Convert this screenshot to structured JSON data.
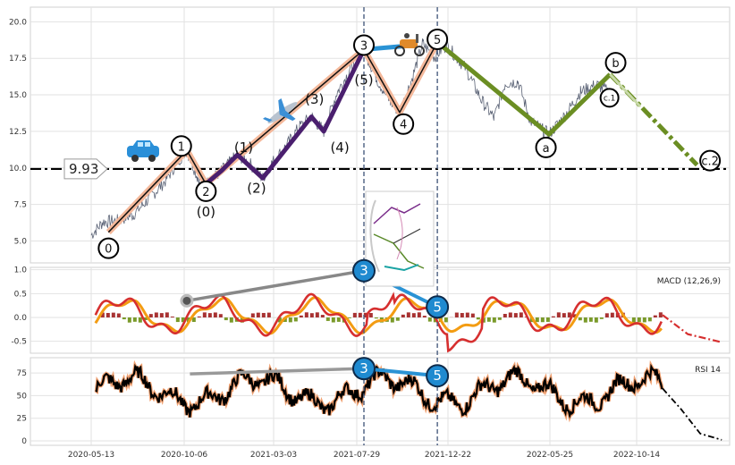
{
  "chart_data": {
    "type": "line",
    "x_ticks": [
      "2020-05-13",
      "2020-10-06",
      "2021-03-03",
      "2021-07-29",
      "2021-12-22",
      "2022-05-25",
      "2022-10-14"
    ],
    "panels": [
      {
        "id": "price",
        "ylim": [
          3.5,
          21
        ],
        "y_ticks": [
          "5.0",
          "7.5",
          "10.0",
          "12.5",
          "15.0",
          "17.5",
          "20.0"
        ],
        "price_series": [
          [
            "2020-05-13",
            5.4
          ],
          [
            "2020-06-01",
            6.3
          ],
          [
            "2020-06-25",
            6.4
          ],
          [
            "2020-07-20",
            6.8
          ],
          [
            "2020-08-15",
            7.9
          ],
          [
            "2020-09-10",
            9.1
          ],
          [
            "2020-10-01",
            10.5
          ],
          [
            "2020-10-15",
            11.2
          ],
          [
            "2020-11-01",
            9.4
          ],
          [
            "2020-11-15",
            8.9
          ],
          [
            "2020-12-10",
            9.8
          ],
          [
            "2021-01-05",
            10.9
          ],
          [
            "2021-01-25",
            10.3
          ],
          [
            "2021-02-15",
            9.3
          ],
          [
            "2021-03-03",
            10.4
          ],
          [
            "2021-03-25",
            11.5
          ],
          [
            "2021-04-15",
            12.8
          ],
          [
            "2021-05-05",
            13.5
          ],
          [
            "2021-05-25",
            12.5
          ],
          [
            "2021-06-15",
            15.1
          ],
          [
            "2021-07-05",
            16.6
          ],
          [
            "2021-07-29",
            18.1
          ],
          [
            "2021-08-20",
            16.0
          ],
          [
            "2021-09-10",
            14.5
          ],
          [
            "2021-09-25",
            13.8
          ],
          [
            "2021-10-15",
            16.1
          ],
          [
            "2021-11-01",
            18.5
          ],
          [
            "2021-11-20",
            17.6
          ],
          [
            "2021-12-10",
            18.4
          ],
          [
            "2022-01-10",
            16.8
          ],
          [
            "2022-02-05",
            14.6
          ],
          [
            "2022-02-25",
            13.4
          ],
          [
            "2022-03-15",
            15.8
          ],
          [
            "2022-04-05",
            15.9
          ],
          [
            "2022-04-25",
            13.2
          ],
          [
            "2022-05-25",
            12.3
          ],
          [
            "2022-06-20",
            13.6
          ],
          [
            "2022-07-15",
            15.2
          ],
          [
            "2022-08-10",
            15.7
          ],
          [
            "2022-08-31",
            15.2
          ]
        ],
        "threshold": {
          "value": 9.93,
          "label": "9.93"
        },
        "labels": [
          {
            "text": "0",
            "x": "2020-06-10",
            "y": 4.5,
            "circle": true
          },
          {
            "text": "1",
            "x": "2020-10-06",
            "y": 11.5,
            "circle": true
          },
          {
            "text": "2",
            "x": "2020-11-15",
            "y": 8.4,
            "circle": true
          },
          {
            "text": "3",
            "x": "2021-07-29",
            "y": 18.4,
            "circle": true
          },
          {
            "text": "4",
            "x": "2021-10-01",
            "y": 13.0,
            "circle": true
          },
          {
            "text": "5",
            "x": "2021-11-25",
            "y": 18.8,
            "circle": true
          },
          {
            "text": "a",
            "x": "2022-05-20",
            "y": 11.4,
            "circle": true
          },
          {
            "text": "b",
            "x": "2022-09-10",
            "y": 17.2,
            "circle": true
          },
          {
            "text": "c.1",
            "x": "2022-08-31",
            "y": 14.8,
            "circle": true,
            "small": true
          },
          {
            "text": "c.2",
            "x": "2023-02-10",
            "y": 10.5,
            "circle": true
          },
          {
            "text": "(0)",
            "x": "2020-11-15",
            "y": 7.0,
            "circle": false
          },
          {
            "text": "(1)",
            "x": "2021-01-15",
            "y": 11.4,
            "circle": false
          },
          {
            "text": "(2)",
            "x": "2021-02-05",
            "y": 8.6,
            "circle": false
          },
          {
            "text": "(3)",
            "x": "2021-05-10",
            "y": 14.7,
            "circle": false
          },
          {
            "text": "(4)",
            "x": "2021-06-20",
            "y": 11.4,
            "circle": false
          },
          {
            "text": "(5)",
            "x": "2021-07-29",
            "y": 16.0,
            "circle": false
          }
        ]
      },
      {
        "id": "macd",
        "title": "MACD (12,26,9)",
        "ylim": [
          -0.75,
          1.05
        ],
        "y_ticks": [
          "-0.5",
          "0.0",
          "0.5",
          "1.0"
        ],
        "markers": [
          {
            "text": "3",
            "x": "2021-07-29",
            "y": 0.98
          },
          {
            "text": "5",
            "x": "2021-11-25",
            "y": 0.22
          }
        ]
      },
      {
        "id": "rsi",
        "title": "RSI 14",
        "ylim": [
          -5,
          92
        ],
        "y_ticks": [
          "0",
          "25",
          "50",
          "75"
        ],
        "markers": [
          {
            "text": "3",
            "x": "2021-07-29",
            "y": 80
          },
          {
            "text": "5",
            "x": "2021-11-25",
            "y": 72
          }
        ]
      }
    ]
  }
}
